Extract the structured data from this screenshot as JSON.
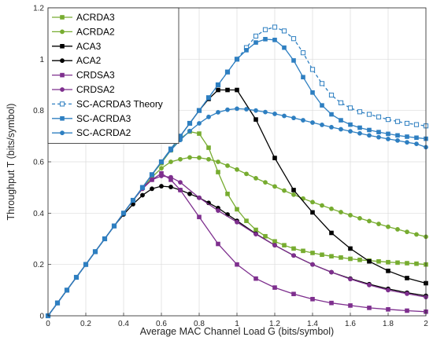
{
  "chart_data": {
    "type": "line",
    "title": "",
    "xlabel": "Average MAC Channel Load G (bits/symbol)",
    "ylabel": "Throughput T (bits/symbol)",
    "xlim": [
      0,
      2
    ],
    "ylim": [
      0,
      1.2
    ],
    "xticks": [
      "0",
      "0.2",
      "0.4",
      "0.6",
      "0.8",
      "1",
      "1.2",
      "1.4",
      "1.6",
      "1.8",
      "2"
    ],
    "yticks": [
      "0",
      "0.2",
      "0.4",
      "0.6",
      "0.8",
      "1",
      "1.2"
    ],
    "xtick_values": [
      0,
      0.2,
      0.4,
      0.6,
      0.8,
      1.0,
      1.2,
      1.4,
      1.6,
      1.8,
      2.0
    ],
    "ytick_values": [
      0,
      0.2,
      0.4,
      0.6,
      0.8,
      1.0,
      1.2
    ],
    "grid": true,
    "legend_position": "top-left",
    "x": [
      0,
      0.05,
      0.1,
      0.15,
      0.2,
      0.25,
      0.3,
      0.35,
      0.4,
      0.45,
      0.5,
      0.55,
      0.6,
      0.65,
      0.7,
      0.75,
      0.8,
      0.85,
      0.9,
      0.95,
      1.0,
      1.05,
      1.1,
      1.15,
      1.2,
      1.25,
      1.3,
      1.35,
      1.4,
      1.45,
      1.5,
      1.55,
      1.6,
      1.65,
      1.7,
      1.75,
      1.8,
      1.85,
      1.9,
      1.95,
      2.0
    ],
    "series": [
      {
        "name": "ACRDA3",
        "color": "#77ac30",
        "marker": "square",
        "dashed": false,
        "x": [
          0,
          0.05,
          0.1,
          0.15,
          0.2,
          0.25,
          0.3,
          0.35,
          0.4,
          0.45,
          0.5,
          0.55,
          0.6,
          0.65,
          0.7,
          0.75,
          0.8,
          0.85,
          0.9,
          0.95,
          1.0,
          1.05,
          1.1,
          1.15,
          1.2,
          1.25,
          1.3,
          1.35,
          1.4,
          1.45,
          1.5,
          1.55,
          1.6,
          1.65,
          1.7,
          1.75,
          1.8,
          1.85,
          1.9,
          1.95,
          2.0
        ],
        "values": [
          0,
          0.05,
          0.1,
          0.15,
          0.2,
          0.25,
          0.3,
          0.35,
          0.4,
          0.45,
          0.5,
          0.55,
          0.595,
          0.645,
          0.69,
          0.718,
          0.71,
          0.655,
          0.56,
          0.475,
          0.415,
          0.37,
          0.335,
          0.31,
          0.29,
          0.275,
          0.262,
          0.253,
          0.245,
          0.238,
          0.232,
          0.227,
          0.222,
          0.218,
          0.215,
          0.212,
          0.209,
          0.207,
          0.205,
          0.203,
          0.2
        ]
      },
      {
        "name": "ACRDA2",
        "color": "#77ac30",
        "marker": "circle",
        "dashed": false,
        "x": [
          0,
          0.05,
          0.1,
          0.15,
          0.2,
          0.25,
          0.3,
          0.35,
          0.4,
          0.45,
          0.5,
          0.55,
          0.6,
          0.65,
          0.7,
          0.75,
          0.8,
          0.85,
          0.9,
          0.95,
          1.0,
          1.05,
          1.1,
          1.15,
          1.2,
          1.25,
          1.3,
          1.35,
          1.4,
          1.45,
          1.5,
          1.55,
          1.6,
          1.65,
          1.7,
          1.75,
          1.8,
          1.85,
          1.9,
          1.95,
          2.0
        ],
        "values": [
          0,
          0.05,
          0.1,
          0.15,
          0.2,
          0.25,
          0.3,
          0.35,
          0.4,
          0.45,
          0.495,
          0.54,
          0.575,
          0.6,
          0.61,
          0.617,
          0.616,
          0.61,
          0.6,
          0.585,
          0.57,
          0.553,
          0.536,
          0.52,
          0.504,
          0.488,
          0.472,
          0.457,
          0.443,
          0.43,
          0.417,
          0.404,
          0.392,
          0.38,
          0.369,
          0.358,
          0.347,
          0.337,
          0.327,
          0.317,
          0.308
        ]
      },
      {
        "name": "ACA3",
        "color": "#000000",
        "marker": "square",
        "dashed": false,
        "x": [
          0,
          0.05,
          0.1,
          0.15,
          0.2,
          0.25,
          0.3,
          0.35,
          0.4,
          0.45,
          0.5,
          0.55,
          0.6,
          0.65,
          0.7,
          0.75,
          0.8,
          0.85,
          0.9,
          0.95,
          1.0,
          1.1,
          1.2,
          1.3,
          1.4,
          1.5,
          1.6,
          1.7,
          1.8,
          1.9,
          2.0
        ],
        "values": [
          0,
          0.05,
          0.1,
          0.15,
          0.2,
          0.25,
          0.3,
          0.35,
          0.4,
          0.45,
          0.5,
          0.55,
          0.6,
          0.65,
          0.7,
          0.75,
          0.8,
          0.845,
          0.88,
          0.88,
          0.88,
          0.765,
          0.615,
          0.49,
          0.403,
          0.323,
          0.262,
          0.212,
          0.175,
          0.147,
          0.127
        ]
      },
      {
        "name": "ACA2",
        "color": "#000000",
        "marker": "circle",
        "dashed": false,
        "x": [
          0,
          0.05,
          0.1,
          0.15,
          0.2,
          0.25,
          0.3,
          0.35,
          0.4,
          0.45,
          0.5,
          0.55,
          0.6,
          0.65,
          0.7,
          0.75,
          0.8,
          0.85,
          0.9,
          0.95,
          1.0,
          1.1,
          1.2,
          1.3,
          1.4,
          1.5,
          1.6,
          1.7,
          1.8,
          1.9,
          2.0
        ],
        "values": [
          0,
          0.05,
          0.1,
          0.15,
          0.2,
          0.25,
          0.3,
          0.35,
          0.395,
          0.435,
          0.47,
          0.495,
          0.505,
          0.502,
          0.49,
          0.475,
          0.46,
          0.44,
          0.42,
          0.395,
          0.37,
          0.32,
          0.275,
          0.235,
          0.2,
          0.17,
          0.145,
          0.123,
          0.105,
          0.09,
          0.078
        ]
      },
      {
        "name": "CRDSA3",
        "color": "#7e2f8e",
        "marker": "square",
        "dashed": false,
        "x": [
          0,
          0.05,
          0.1,
          0.15,
          0.2,
          0.25,
          0.3,
          0.35,
          0.4,
          0.45,
          0.5,
          0.55,
          0.6,
          0.65,
          0.7,
          0.8,
          0.9,
          1.0,
          1.1,
          1.2,
          1.3,
          1.4,
          1.5,
          1.6,
          1.7,
          1.8,
          1.9,
          2.0
        ],
        "values": [
          0,
          0.05,
          0.1,
          0.15,
          0.2,
          0.25,
          0.3,
          0.35,
          0.4,
          0.45,
          0.5,
          0.53,
          0.555,
          0.53,
          0.49,
          0.385,
          0.28,
          0.2,
          0.145,
          0.11,
          0.085,
          0.065,
          0.05,
          0.04,
          0.031,
          0.025,
          0.02,
          0.016
        ]
      },
      {
        "name": "CRDSA2",
        "color": "#7e2f8e",
        "marker": "circle",
        "dashed": false,
        "x": [
          0,
          0.05,
          0.1,
          0.15,
          0.2,
          0.25,
          0.3,
          0.35,
          0.4,
          0.45,
          0.5,
          0.55,
          0.6,
          0.65,
          0.7,
          0.8,
          0.9,
          1.0,
          1.1,
          1.2,
          1.3,
          1.4,
          1.5,
          1.6,
          1.7,
          1.8,
          1.9,
          2.0
        ],
        "values": [
          0,
          0.05,
          0.1,
          0.15,
          0.2,
          0.25,
          0.3,
          0.35,
          0.4,
          0.45,
          0.495,
          0.53,
          0.545,
          0.54,
          0.52,
          0.46,
          0.41,
          0.365,
          0.318,
          0.275,
          0.235,
          0.2,
          0.17,
          0.143,
          0.12,
          0.1,
          0.086,
          0.073
        ]
      },
      {
        "name": "SC-ACRDA3 Theory",
        "color": "#2e7fc1",
        "marker": "square-open",
        "dashed": true,
        "x": [
          0,
          0.05,
          0.1,
          0.15,
          0.2,
          0.25,
          0.3,
          0.35,
          0.4,
          0.45,
          0.5,
          0.55,
          0.6,
          0.65,
          0.7,
          0.75,
          0.8,
          0.85,
          0.9,
          0.95,
          1.0,
          1.05,
          1.1,
          1.15,
          1.2,
          1.25,
          1.3,
          1.35,
          1.4,
          1.45,
          1.5,
          1.55,
          1.6,
          1.65,
          1.7,
          1.75,
          1.8,
          1.85,
          1.9,
          1.95,
          2.0
        ],
        "values": [
          0,
          0.05,
          0.1,
          0.15,
          0.2,
          0.25,
          0.3,
          0.35,
          0.4,
          0.45,
          0.5,
          0.55,
          0.6,
          0.65,
          0.7,
          0.75,
          0.8,
          0.85,
          0.9,
          0.95,
          1.0,
          1.045,
          1.09,
          1.115,
          1.125,
          1.11,
          1.08,
          1.025,
          0.96,
          0.905,
          0.86,
          0.83,
          0.81,
          0.795,
          0.785,
          0.775,
          0.765,
          0.757,
          0.75,
          0.745,
          0.74
        ]
      },
      {
        "name": "SC-ACRDA3",
        "color": "#2e7fc1",
        "marker": "square",
        "dashed": false,
        "x": [
          0,
          0.05,
          0.1,
          0.15,
          0.2,
          0.25,
          0.3,
          0.35,
          0.4,
          0.45,
          0.5,
          0.55,
          0.6,
          0.65,
          0.7,
          0.75,
          0.8,
          0.85,
          0.9,
          0.95,
          1.0,
          1.05,
          1.1,
          1.15,
          1.2,
          1.25,
          1.3,
          1.35,
          1.4,
          1.45,
          1.5,
          1.55,
          1.6,
          1.65,
          1.7,
          1.75,
          1.8,
          1.85,
          1.9,
          1.95,
          2.0
        ],
        "values": [
          0,
          0.05,
          0.1,
          0.15,
          0.2,
          0.25,
          0.3,
          0.35,
          0.4,
          0.45,
          0.5,
          0.55,
          0.6,
          0.65,
          0.7,
          0.75,
          0.8,
          0.85,
          0.9,
          0.95,
          1.0,
          1.035,
          1.065,
          1.078,
          1.075,
          1.045,
          0.995,
          0.93,
          0.87,
          0.82,
          0.785,
          0.762,
          0.745,
          0.733,
          0.724,
          0.716,
          0.709,
          0.703,
          0.698,
          0.694,
          0.69
        ]
      },
      {
        "name": "SC-ACRDA2",
        "color": "#2e7fc1",
        "marker": "circle",
        "dashed": false,
        "x": [
          0,
          0.05,
          0.1,
          0.15,
          0.2,
          0.25,
          0.3,
          0.35,
          0.4,
          0.45,
          0.5,
          0.55,
          0.6,
          0.65,
          0.7,
          0.75,
          0.8,
          0.85,
          0.9,
          0.95,
          1.0,
          1.05,
          1.1,
          1.15,
          1.2,
          1.25,
          1.3,
          1.35,
          1.4,
          1.45,
          1.5,
          1.55,
          1.6,
          1.65,
          1.7,
          1.75,
          1.8,
          1.85,
          1.9,
          1.95,
          2.0
        ],
        "values": [
          0,
          0.05,
          0.1,
          0.15,
          0.2,
          0.25,
          0.3,
          0.35,
          0.4,
          0.45,
          0.5,
          0.55,
          0.6,
          0.645,
          0.685,
          0.72,
          0.75,
          0.775,
          0.793,
          0.803,
          0.807,
          0.805,
          0.8,
          0.794,
          0.787,
          0.779,
          0.771,
          0.762,
          0.753,
          0.744,
          0.735,
          0.727,
          0.719,
          0.711,
          0.703,
          0.696,
          0.689,
          0.683,
          0.676,
          0.67,
          0.657
        ]
      }
    ]
  }
}
